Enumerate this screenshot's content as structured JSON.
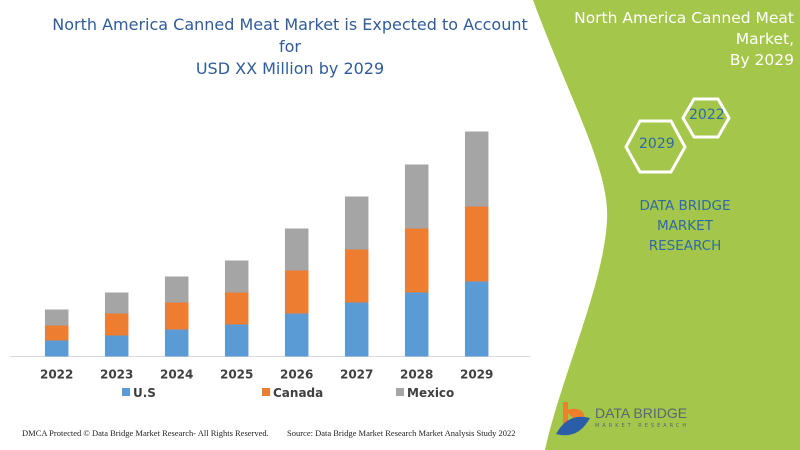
{
  "header": {
    "title_line1": "North America Canned Meat Market is Expected to Account for",
    "title_line2": "USD XX Million by 2029"
  },
  "side_panel": {
    "title_line1": "North America Canned Meat Market,",
    "title_line2": "By 2029",
    "hex_a": "2022",
    "hex_b": "2029",
    "brand_line1": "DATA BRIDGE MARKET",
    "brand_line2": "RESEARCH",
    "color": "#a4c64a"
  },
  "logo": {
    "name": "DATA BRIDGE",
    "sub": "MARKET RESEARCH"
  },
  "footer": {
    "left": "DMCA Protected © Data Bridge Market Research- All Rights Reserved.",
    "right": "Source: Data Bridge Market Research Market Analysis Study 2022"
  },
  "chart_data": {
    "type": "bar",
    "stacked": true,
    "categories": [
      "2022",
      "2023",
      "2024",
      "2025",
      "2026",
      "2027",
      "2028",
      "2029"
    ],
    "series": [
      {
        "name": "U.S",
        "color": "#5b9bd5",
        "values": [
          16,
          21,
          27,
          32,
          43,
          54,
          64,
          75
        ]
      },
      {
        "name": "Canada",
        "color": "#ed7d31",
        "values": [
          15,
          22,
          27,
          32,
          43,
          53,
          64,
          75
        ]
      },
      {
        "name": "Mexico",
        "color": "#a5a5a5",
        "values": [
          16,
          21,
          26,
          32,
          42,
          53,
          64,
          75
        ]
      }
    ],
    "legend": "bottom",
    "grid": false,
    "y_axis_visible": false
  }
}
